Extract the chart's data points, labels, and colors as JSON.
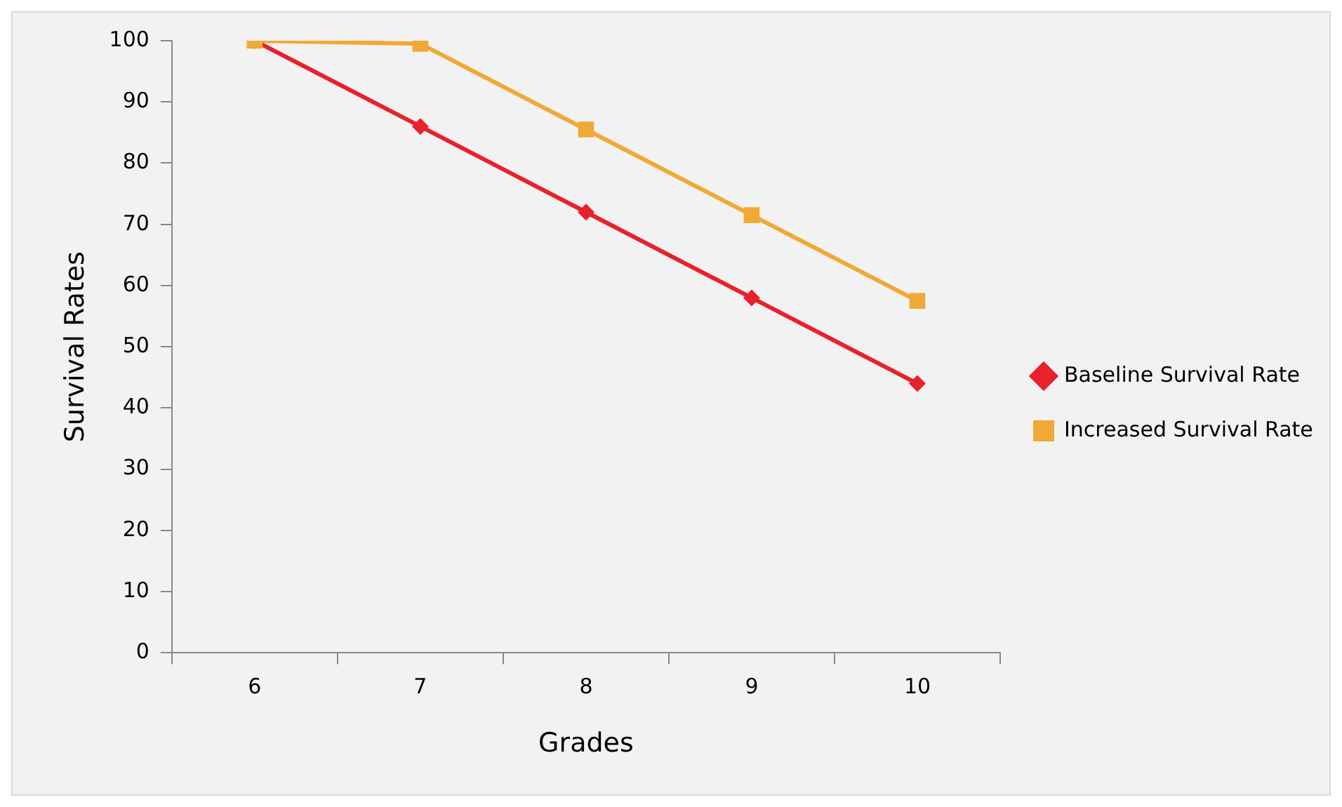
{
  "chart_data": {
    "type": "line",
    "xlabel": "Grades",
    "ylabel": "Survival Rates",
    "categories": [
      "6",
      "7",
      "8",
      "9",
      "10"
    ],
    "series": [
      {
        "name": "Baseline Survival Rate",
        "color": "#e8212b",
        "marker": "diamond",
        "values": [
          100,
          86,
          72,
          58,
          44
        ]
      },
      {
        "name": "Increased Survival Rate",
        "color": "#f0a935",
        "marker": "square",
        "values": [
          100,
          99.5,
          85.5,
          71.5,
          57.5
        ]
      }
    ],
    "ylim": [
      0,
      100
    ],
    "yticks": [
      0,
      10,
      20,
      30,
      40,
      50,
      60,
      70,
      80,
      90,
      100
    ],
    "grid": false,
    "legend": "right",
    "line_style": "solid"
  }
}
